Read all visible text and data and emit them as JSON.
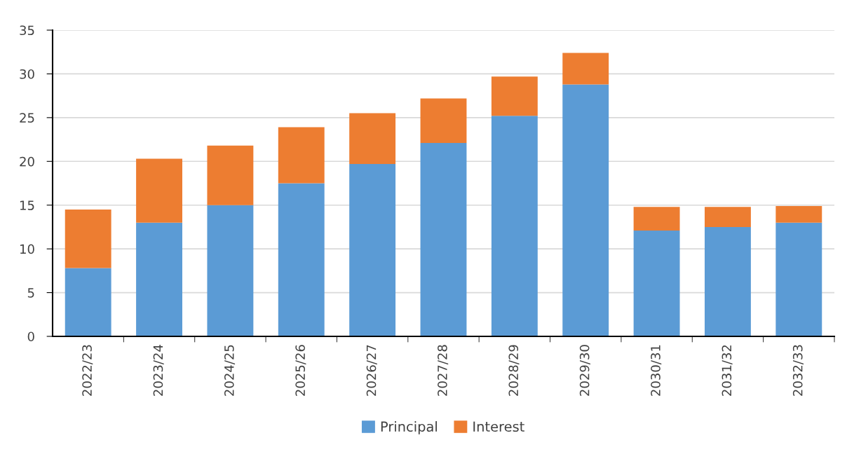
{
  "chart_data": {
    "type": "bar",
    "stacked": true,
    "categories": [
      "2022/23",
      "2023/24",
      "2024/25",
      "2025/26",
      "2026/27",
      "2027/28",
      "2028/29",
      "2029/30",
      "2030/31",
      "2031/32",
      "2032/33"
    ],
    "series": [
      {
        "name": "Principal",
        "color": "#5b9bd5",
        "values": [
          7.8,
          13.0,
          15.0,
          17.5,
          19.7,
          22.1,
          25.2,
          28.8,
          12.1,
          12.5,
          13.0
        ]
      },
      {
        "name": "Interest",
        "color": "#ed7d31",
        "values": [
          6.7,
          7.3,
          6.8,
          6.4,
          5.8,
          5.1,
          4.5,
          3.6,
          2.7,
          2.3,
          1.9
        ]
      }
    ],
    "ylim": [
      0,
      35
    ],
    "yticks": [
      0,
      5,
      10,
      15,
      20,
      25,
      30,
      35
    ],
    "grid": "y",
    "legend": "bottom"
  }
}
